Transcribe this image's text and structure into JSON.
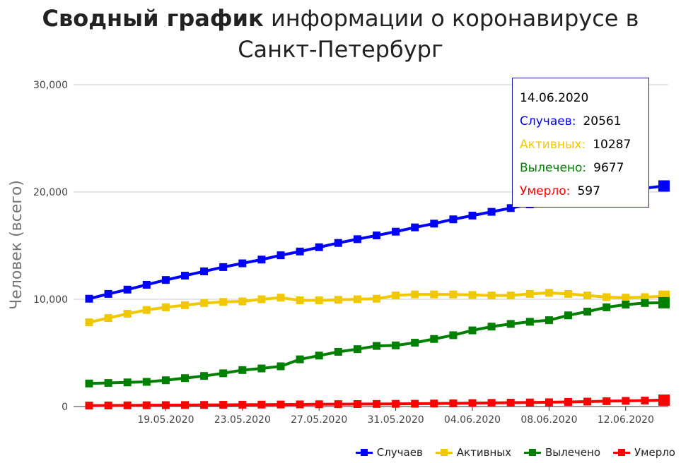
{
  "title_bold": "Сводный график",
  "title_rest": " информации о коронавирусе в Санкт-Петербург",
  "tooltip": {
    "date": "14.06.2020",
    "rows": [
      {
        "label": "Случаев:",
        "value": "20561",
        "color": "#0000ff"
      },
      {
        "label": "Активных:",
        "value": "10287",
        "color": "#f0c800"
      },
      {
        "label": "Вылечено:",
        "value": "9677",
        "color": "#008000"
      },
      {
        "label": "Умерло:",
        "value": "597",
        "color": "#ff0000"
      }
    ]
  },
  "chart_data": {
    "type": "line",
    "title": "Сводный график информации о коронавирусе в Санкт-Петербург",
    "ylabel": "Человек (всего)",
    "xlabel": "",
    "ylim": [
      0,
      30000
    ],
    "yticks": [
      0,
      10000,
      20000,
      30000
    ],
    "ytick_labels": [
      "0",
      "10,000",
      "20,000",
      "30,000"
    ],
    "xtick_labels": [
      "19.05.2020",
      "23.05.2020",
      "27.05.2020",
      "31.05.2020",
      "04.06.2020",
      "08.06.2020",
      "12.06.2020"
    ],
    "xtick_dates": [
      "2020-05-19",
      "2020-05-23",
      "2020-05-27",
      "2020-05-31",
      "2020-06-04",
      "2020-06-08",
      "2020-06-12"
    ],
    "grid": true,
    "legend_position": "bottom-right",
    "x": [
      "2020-05-15",
      "2020-05-16",
      "2020-05-17",
      "2020-05-18",
      "2020-05-19",
      "2020-05-20",
      "2020-05-21",
      "2020-05-22",
      "2020-05-23",
      "2020-05-24",
      "2020-05-25",
      "2020-05-26",
      "2020-05-27",
      "2020-05-28",
      "2020-05-29",
      "2020-05-30",
      "2020-05-31",
      "2020-06-01",
      "2020-06-02",
      "2020-06-03",
      "2020-06-04",
      "2020-06-05",
      "2020-06-06",
      "2020-06-07",
      "2020-06-08",
      "2020-06-09",
      "2020-06-10",
      "2020-06-11",
      "2020-06-12",
      "2020-06-13",
      "2020-06-14"
    ],
    "series": [
      {
        "name": "Случаев",
        "color": "#0000ff",
        "values": [
          10050,
          10500,
          10900,
          11350,
          11800,
          12200,
          12600,
          13000,
          13350,
          13700,
          14100,
          14450,
          14850,
          15250,
          15600,
          15950,
          16300,
          16700,
          17050,
          17450,
          17800,
          18150,
          18500,
          18850,
          19150,
          19450,
          19700,
          19950,
          20150,
          20350,
          20561
        ]
      },
      {
        "name": "Активных",
        "color": "#f0c800",
        "values": [
          7850,
          8250,
          8650,
          9000,
          9250,
          9450,
          9650,
          9750,
          9800,
          10000,
          10150,
          9900,
          9900,
          9950,
          10000,
          10050,
          10350,
          10450,
          10450,
          10450,
          10400,
          10350,
          10350,
          10500,
          10600,
          10500,
          10350,
          10200,
          10150,
          10200,
          10287
        ]
      },
      {
        "name": "Вылечено",
        "color": "#008000",
        "values": [
          2150,
          2200,
          2250,
          2300,
          2450,
          2650,
          2850,
          3100,
          3400,
          3550,
          3750,
          4400,
          4750,
          5100,
          5350,
          5650,
          5700,
          5950,
          6300,
          6650,
          7100,
          7450,
          7700,
          7900,
          8050,
          8500,
          8850,
          9250,
          9500,
          9650,
          9677
        ]
      },
      {
        "name": "Умерло",
        "color": "#ff0000",
        "values": [
          90,
          100,
          110,
          120,
          130,
          140,
          150,
          160,
          170,
          180,
          190,
          200,
          210,
          220,
          230,
          240,
          250,
          260,
          280,
          300,
          320,
          340,
          360,
          380,
          400,
          430,
          460,
          500,
          530,
          560,
          597
        ]
      }
    ]
  }
}
